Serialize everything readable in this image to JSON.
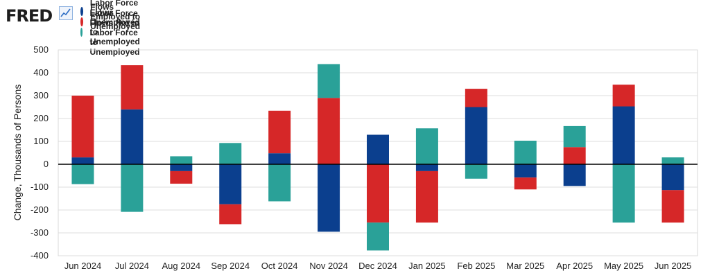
{
  "brand": {
    "name": "FRED",
    "icon": "line-chart-icon"
  },
  "chart_data": {
    "type": "bar",
    "stacked": true,
    "categories": [
      "Jun 2024",
      "Jul 2024",
      "Aug 2024",
      "Sep 2024",
      "Oct 2024",
      "Nov 2024",
      "Dec 2024",
      "Jan 2025",
      "Feb 2025",
      "Mar 2025",
      "Apr 2025",
      "May 2025",
      "Jun 2025"
    ],
    "series": [
      {
        "name": "Labor Force Flows Employed to Unemployed",
        "color": "#0b3f8e",
        "values": [
          30,
          240,
          -30,
          -175,
          48,
          -295,
          129,
          -30,
          250,
          -58,
          -95,
          253,
          -113
        ]
      },
      {
        "name": "Labor Force Flows Unemployed to Unemployed",
        "color": "#d62728",
        "values": [
          270,
          193,
          -55,
          -87,
          186,
          290,
          -255,
          -225,
          80,
          -52,
          75,
          95,
          -142
        ]
      },
      {
        "name": "Labor Force Flows Not in Labor Force to Unemployed",
        "color": "#2aa198",
        "values": [
          -87,
          -208,
          35,
          93,
          -162,
          148,
          -122,
          157,
          -63,
          103,
          92,
          -255,
          30
        ]
      }
    ],
    "xlabel": "",
    "ylabel": "Change, Thousands of Persons",
    "ylim": [
      -400,
      500
    ],
    "yticks": [
      500,
      400,
      300,
      200,
      100,
      0,
      -100,
      -200,
      -300,
      -400
    ],
    "grid": true,
    "legend": "top-left"
  }
}
